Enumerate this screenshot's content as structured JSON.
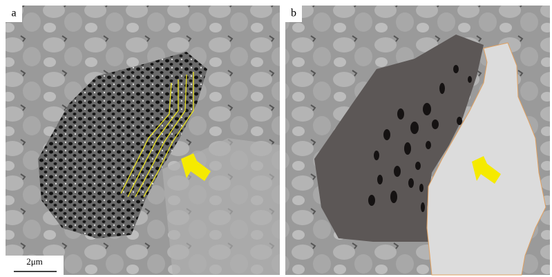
{
  "panels": [
    {
      "label": "a",
      "scale_bar": "2μm"
    },
    {
      "label": "b"
    }
  ]
}
